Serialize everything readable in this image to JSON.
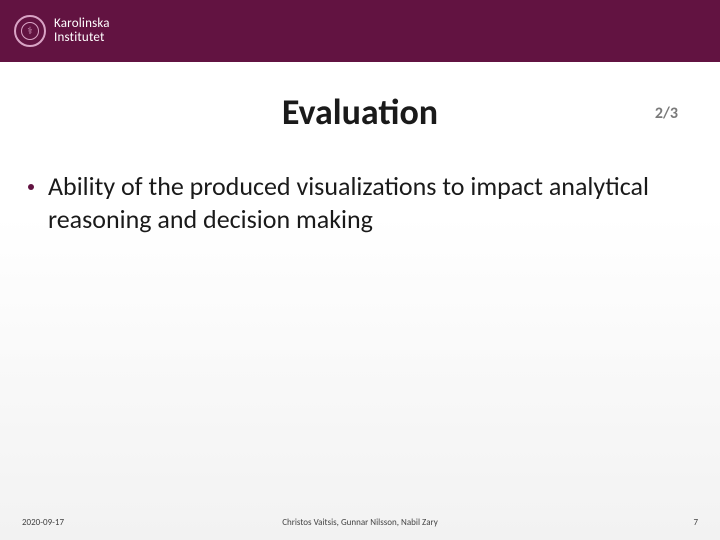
{
  "header": {
    "institution_line1": "Karolinska",
    "institution_line2": "Institutet",
    "brand_color": "#621341",
    "seal_border_color": "#d9a3c5"
  },
  "title": "Evaluation",
  "page_fraction": "2/3",
  "bullets": [
    "Ability of the produced visualizations to  impact analytical reasoning  and decision  making"
  ],
  "footer": {
    "date": "2020-09-17",
    "authors": "Christos Vaitsis, Gunnar Nilsson, Nabil Zary",
    "slide_number": "7"
  },
  "typography": {
    "title_fontsize": 36,
    "bullet_fontsize": 26,
    "footer_fontsize": 9
  },
  "colors": {
    "background_top": "#ffffff",
    "background_bottom": "#f2f2f2",
    "title_color": "#1a1a1a",
    "bullet_text_color": "#1a1a1a",
    "bullet_dot_color": "#621341",
    "page_frac_color": "#7a7a7a",
    "footer_text_color": "#444444"
  }
}
